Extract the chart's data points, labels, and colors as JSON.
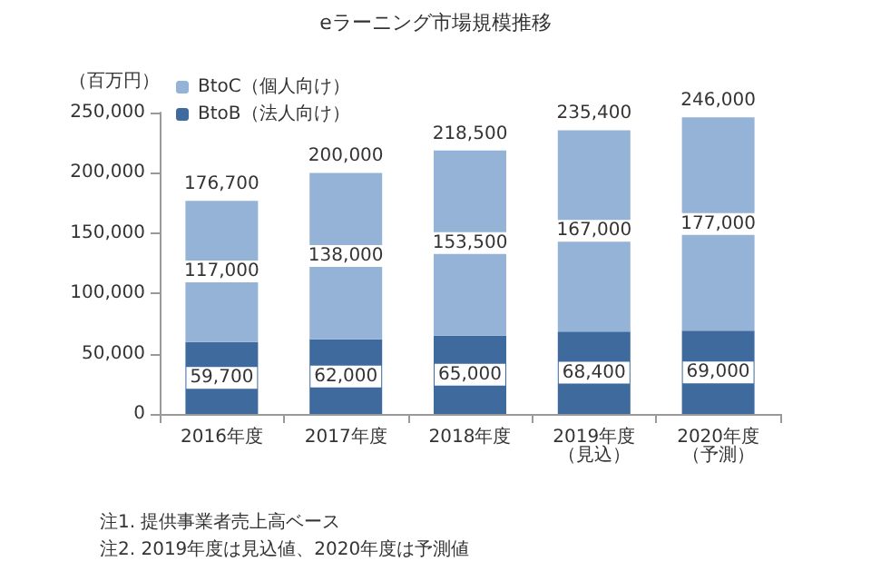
{
  "chart_data": {
    "type": "bar",
    "title": "eラーニング市場規模推移",
    "ylabel": "（百万円）",
    "categories": [
      "2016年度",
      "2017年度",
      "2018年度",
      "2019年度（見込）",
      "2020年度（予測）"
    ],
    "series": [
      {
        "name": "BtoB（法人向け）",
        "color": "#3e6a9e",
        "values": [
          59700,
          62000,
          65000,
          68400,
          69000
        ],
        "value_labels": [
          "59,700",
          "62,000",
          "65,000",
          "68,400",
          "69,000"
        ]
      },
      {
        "name": "BtoC（個人向け）",
        "color": "#95b3d7",
        "values": [
          117000,
          138000,
          153500,
          167000,
          177000
        ],
        "value_labels": [
          "117,000",
          "138,000",
          "153,500",
          "167,000",
          "177,000"
        ]
      }
    ],
    "stacked": true,
    "totals": [
      "176,700",
      "200,000",
      "218,500",
      "235,400",
      "246,000"
    ],
    "ylim": [
      0,
      250000
    ],
    "yticks": [
      {
        "value": 0,
        "label": "0"
      },
      {
        "value": 50000,
        "label": "50,000"
      },
      {
        "value": 100000,
        "label": "100,000"
      },
      {
        "value": 150000,
        "label": "150,000"
      },
      {
        "value": 200000,
        "label": "200,000"
      },
      {
        "value": 250000,
        "label": "250,000"
      }
    ],
    "grid": false,
    "legend": "top left",
    "annotations": [
      "注1. 提供事業者売上高ベース",
      "注2. 2019年度は見込値、2020年度は予測値"
    ]
  }
}
